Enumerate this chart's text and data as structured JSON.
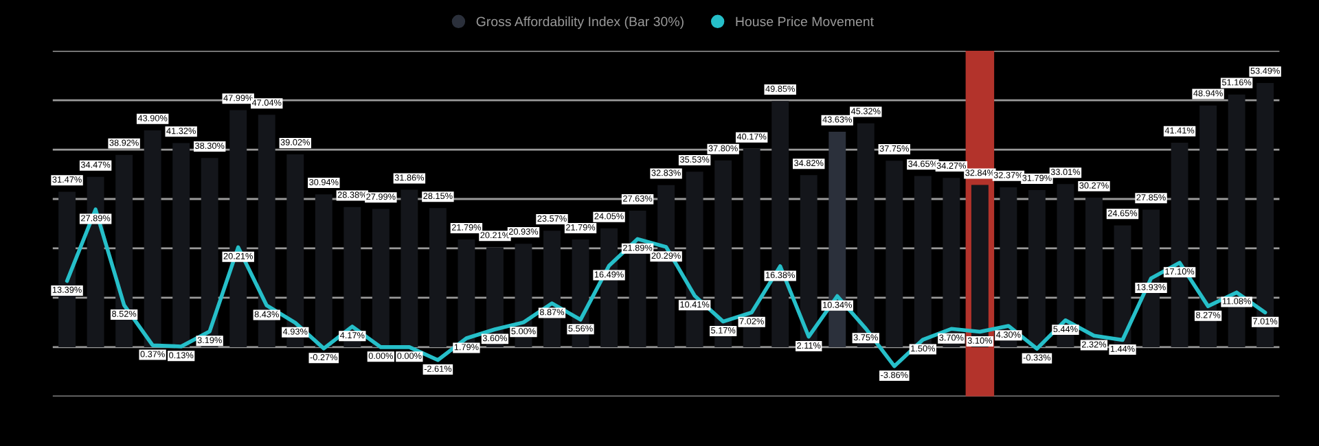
{
  "chart_data": [
    {
      "type": "bar",
      "categories": [
        null,
        null,
        null,
        null,
        null,
        null,
        null,
        null,
        null,
        null,
        null,
        null,
        null,
        null,
        null,
        null,
        null,
        null,
        null,
        null,
        null,
        null,
        null,
        null,
        null,
        null,
        null,
        null,
        null,
        null,
        null,
        null,
        null,
        null,
        null,
        null,
        null,
        null,
        null,
        null,
        null,
        null,
        null
      ],
      "series": [
        {
          "name": "Gross Affordability Index (Bar 30%)",
          "color": "#2b303b",
          "colors": [
            "#14161b",
            "#14161b",
            "#14161b",
            "#14161b",
            "#14161b",
            "#14161b",
            "#14161b",
            "#14161b",
            "#14161b",
            "#14161b",
            "#14161b",
            "#14161b",
            "#14161b",
            "#14161b",
            "#14161b",
            "#14161b",
            "#14161b",
            "#14161b",
            "#14161b",
            "#14161b",
            "#14161b",
            "#14161b",
            "#14161b",
            "#14161b",
            "#14161b",
            "#14161b",
            "#14161b",
            "#2b303b",
            "#14161b",
            "#14161b",
            "#14161b",
            "#14161b",
            "#14161b",
            "#14161b",
            "#14161b",
            "#14161b",
            "#14161b",
            "#14161b",
            "#14161b",
            "#14161b",
            "#14161b",
            "#14161b",
            "#14161b"
          ],
          "values": [
            31.47,
            34.47,
            38.92,
            43.9,
            41.32,
            38.3,
            47.99,
            47.04,
            39.02,
            30.94,
            28.38,
            27.99,
            31.86,
            28.15,
            21.79,
            20.21,
            20.93,
            23.57,
            21.79,
            24.05,
            27.63,
            32.83,
            35.53,
            37.8,
            40.17,
            49.85,
            34.82,
            43.63,
            45.32,
            37.75,
            34.65,
            34.27,
            32.84,
            32.37,
            31.79,
            33.01,
            30.27,
            24.65,
            27.85,
            41.41,
            48.94,
            51.16,
            53.49
          ],
          "value_labels": [
            "31.47%",
            "34.47%",
            "38.92%",
            "43.90%",
            "41.32%",
            "38.30%",
            "47.99%",
            "47.04%",
            "39.02%",
            "30.94%",
            "28.38%",
            "27.99%",
            "31.86%",
            "28.15%",
            "21.79%",
            "20.21%",
            "20.93%",
            "23.57%",
            "21.79%",
            "24.05%",
            "27.63%",
            "32.83%",
            "35.53%",
            "37.80%",
            "40.17%",
            "49.85%",
            "34.82%",
            "43.63%",
            "45.32%",
            "37.75%",
            "34.65%",
            "34.27%",
            "32.84%",
            "32.37%",
            "31.79%",
            "33.01%",
            "30.27%",
            "24.65%",
            "27.85%",
            "41.41%",
            "48.94%",
            "51.16%",
            "53.49%"
          ]
        }
      ],
      "ylim": [
        -10,
        60
      ],
      "yticks": [
        {
          "value": -10,
          "label": null
        },
        {
          "value": 0,
          "label": null
        },
        {
          "value": 10,
          "label": null
        },
        {
          "value": 20,
          "label": null
        },
        {
          "value": 30,
          "label": null
        },
        {
          "value": 40,
          "label": null
        },
        {
          "value": 50,
          "label": null
        },
        {
          "value": 60,
          "label": null
        }
      ],
      "grid": "y",
      "legend": "top"
    },
    {
      "type": "line",
      "categories": [
        null,
        null,
        null,
        null,
        null,
        null,
        null,
        null,
        null,
        null,
        null,
        null,
        null,
        null,
        null,
        null,
        null,
        null,
        null,
        null,
        null,
        null,
        null,
        null,
        null,
        null,
        null,
        null,
        null,
        null,
        null,
        null,
        null,
        null,
        null,
        null,
        null,
        null,
        null,
        null,
        null,
        null,
        null
      ],
      "series": [
        {
          "name": "House Price Movement",
          "color": "#26bfc9",
          "values": [
            13.39,
            27.89,
            8.52,
            0.37,
            0.13,
            3.19,
            20.21,
            8.43,
            4.93,
            -0.27,
            4.17,
            0.0,
            0.0,
            -2.61,
            1.79,
            3.6,
            5.0,
            8.87,
            5.56,
            16.49,
            21.89,
            20.29,
            10.41,
            5.17,
            7.02,
            16.38,
            2.11,
            10.34,
            3.75,
            -3.86,
            1.5,
            3.7,
            3.1,
            4.3,
            -0.33,
            5.44,
            2.32,
            1.44,
            13.93,
            17.1,
            8.27,
            11.08,
            7.01
          ],
          "value_labels": [
            "13.39%",
            "27.89%",
            "8.52%",
            "0.37%",
            "0.13%",
            "3.19%",
            "20.21%",
            "8.43%",
            "4.93%",
            "-0.27%",
            "4.17%",
            "0.00%",
            "0.00%",
            "-2.61%",
            "1.79%",
            "3.60%",
            "5.00%",
            "8.87%",
            "5.56%",
            "16.49%",
            "21.89%",
            "20.29%",
            "10.41%",
            "5.17%",
            "7.02%",
            "16.38%",
            "2.11%",
            "10.34%",
            "3.75%",
            "-3.86%",
            "1.50%",
            "3.70%",
            "3.10%",
            "4.30%",
            "-0.33%",
            "5.44%",
            "2.32%",
            "1.44%",
            "13.93%",
            "17.10%",
            "8.27%",
            "11.08%",
            "7.01%"
          ]
        }
      ],
      "ylim": [
        -10,
        60
      ],
      "legend": "top"
    }
  ]
}
